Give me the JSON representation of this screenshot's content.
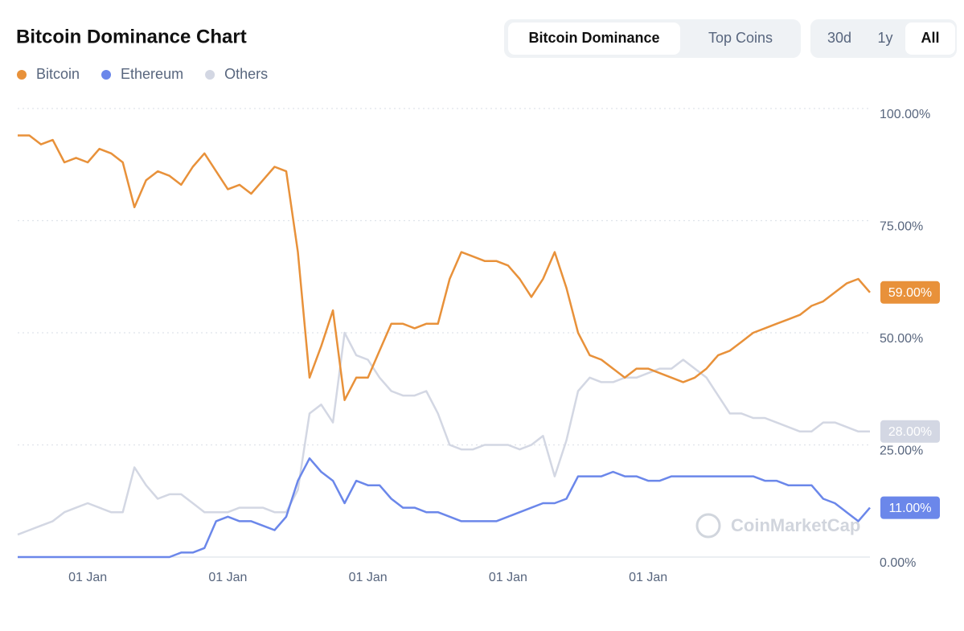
{
  "chart_data": {
    "type": "line",
    "title": "Bitcoin Dominance Chart",
    "categories": [
      null,
      null,
      null,
      null,
      null,
      null,
      "01 Jan",
      null,
      null,
      null,
      null,
      null,
      null,
      null,
      null,
      null,
      null,
      null,
      "01 Jan",
      null,
      null,
      null,
      null,
      null,
      null,
      null,
      null,
      null,
      null,
      null,
      "01 Jan",
      null,
      null,
      null,
      null,
      null,
      null,
      null,
      null,
      null,
      null,
      null,
      "01 Jan",
      null,
      null,
      null,
      null,
      null,
      null,
      null,
      null,
      null,
      null,
      null,
      "01 Jan",
      null,
      null,
      null,
      null,
      null,
      null,
      null,
      null,
      null,
      null,
      null,
      null,
      null,
      null,
      null,
      null,
      null,
      null,
      null
    ],
    "series": [
      {
        "name": "Bitcoin",
        "color": "#e8913a",
        "last_label": "59.00%",
        "values": [
          94,
          94,
          92,
          93,
          88,
          89,
          88,
          91,
          90,
          88,
          78,
          84,
          86,
          85,
          83,
          87,
          90,
          86,
          82,
          83,
          81,
          84,
          87,
          86,
          68,
          40,
          47,
          55,
          35,
          40,
          40,
          46,
          52,
          52,
          51,
          52,
          52,
          62,
          68,
          67,
          66,
          66,
          65,
          62,
          58,
          62,
          68,
          60,
          50,
          45,
          44,
          42,
          40,
          42,
          42,
          41,
          40,
          39,
          40,
          42,
          45,
          46,
          48,
          50,
          51,
          52,
          53,
          54,
          56,
          57,
          59,
          61,
          62,
          59
        ]
      },
      {
        "name": "Ethereum",
        "color": "#6b87ea",
        "last_label": "11.00%",
        "values": [
          0,
          0,
          0,
          0,
          0,
          0,
          0,
          0,
          0,
          0,
          0,
          0,
          0,
          0,
          1,
          1,
          2,
          8,
          9,
          8,
          8,
          7,
          6,
          9,
          17,
          22,
          19,
          17,
          12,
          17,
          16,
          16,
          13,
          11,
          11,
          10,
          10,
          9,
          8,
          8,
          8,
          8,
          9,
          10,
          11,
          12,
          12,
          13,
          18,
          18,
          18,
          19,
          18,
          18,
          17,
          17,
          18,
          18,
          18,
          18,
          18,
          18,
          18,
          18,
          17,
          17,
          16,
          16,
          16,
          13,
          12,
          10,
          8,
          11
        ]
      },
      {
        "name": "Others",
        "color": "#d3d7e3",
        "last_label": "28.00%",
        "values": [
          5,
          6,
          7,
          8,
          10,
          11,
          12,
          11,
          10,
          10,
          20,
          16,
          13,
          14,
          14,
          12,
          10,
          10,
          10,
          11,
          11,
          11,
          10,
          10,
          15,
          32,
          34,
          30,
          50,
          45,
          44,
          40,
          37,
          36,
          36,
          37,
          32,
          25,
          24,
          24,
          25,
          25,
          25,
          24,
          25,
          27,
          18,
          26,
          37,
          40,
          39,
          39,
          40,
          40,
          41,
          42,
          42,
          44,
          42,
          40,
          36,
          32,
          32,
          31,
          31,
          30,
          29,
          28,
          28,
          30,
          30,
          29,
          28,
          28
        ]
      }
    ],
    "ylim": [
      0,
      100
    ],
    "yticks": [
      {
        "value": 0,
        "label": "0.00%"
      },
      {
        "value": 25,
        "label": "25.00%"
      },
      {
        "value": 50,
        "label": "50.00%"
      },
      {
        "value": 75,
        "label": "75.00%"
      },
      {
        "value": 100,
        "label": "100.00%"
      }
    ],
    "grid": true
  },
  "ui": {
    "tabs": [
      "Bitcoin Dominance",
      "Top Coins"
    ],
    "selected_tab": 0,
    "ranges": [
      "30d",
      "1y",
      "All"
    ],
    "selected_range": 2,
    "watermark": "CoinMarketCap"
  }
}
